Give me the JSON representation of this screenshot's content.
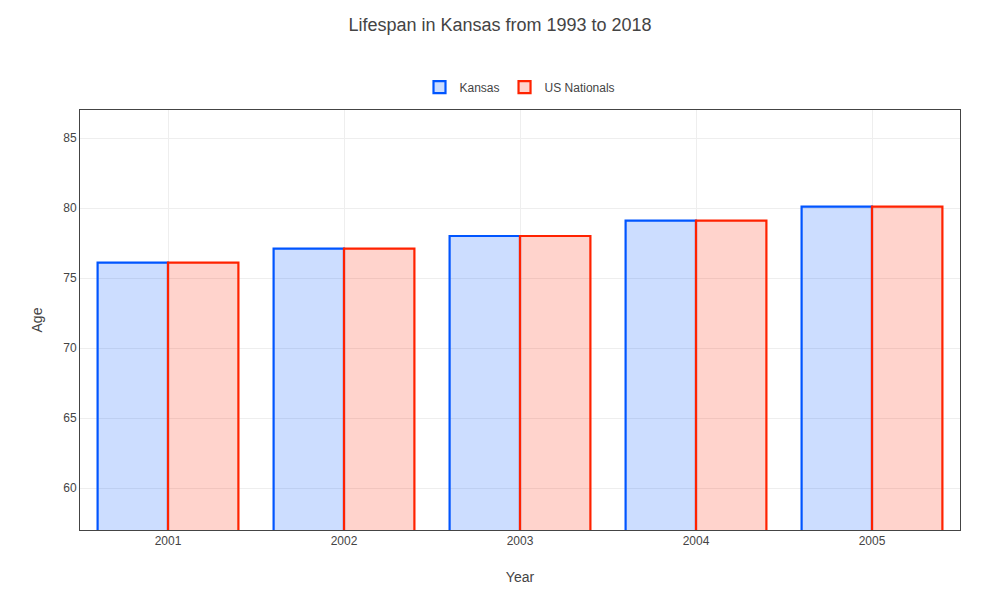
{
  "chart_data": {
    "type": "bar",
    "title": "Lifespan in Kansas from 1993 to 2018",
    "x_label": "Year",
    "y_label": "Age",
    "categories": [
      "2001",
      "2002",
      "2003",
      "2004",
      "2005"
    ],
    "series": [
      {
        "name": "Kansas",
        "color": "#0055ff",
        "values": [
          76.1,
          77.1,
          78.0,
          79.1,
          80.1
        ]
      },
      {
        "name": "US Nationals",
        "color": "#ff2200",
        "values": [
          76.1,
          77.1,
          78.0,
          79.1,
          80.1
        ]
      }
    ],
    "ylim": [
      57,
      87
    ],
    "yticks": [
      60,
      65,
      70,
      75,
      80,
      85
    ],
    "grid": true,
    "legend": "upper center"
  }
}
